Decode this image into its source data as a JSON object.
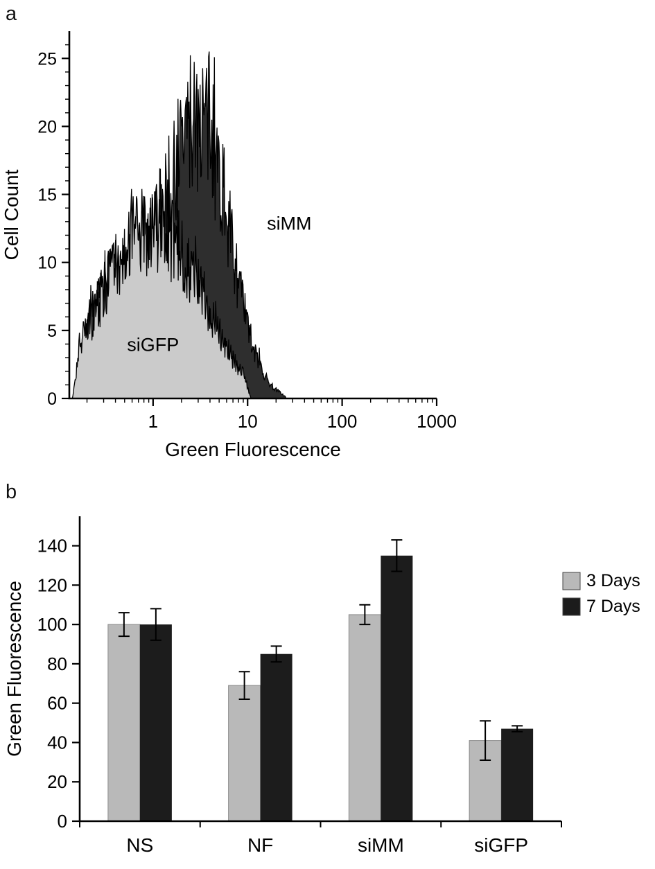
{
  "figure": {
    "panel_a_label": "a",
    "panel_b_label": "b",
    "background": "#ffffff"
  },
  "chart_data": [
    {
      "type": "area",
      "panel": "a",
      "subtype": "flow-cytometry-overlay-histogram",
      "xlabel": "Green Fluorescence",
      "ylabel": "Cell Count",
      "xscale": "log",
      "xlim": [
        0.13,
        1000
      ],
      "ylim": [
        0,
        27
      ],
      "xticks": [
        1,
        10,
        100,
        1000
      ],
      "yticks": [
        0,
        5,
        10,
        15,
        20,
        25
      ],
      "grid": false,
      "noise": {
        "seed": 7,
        "jitter": 0.55,
        "bins": 330,
        "spike_prob": 0.07,
        "spike_mag": 0.35
      },
      "series": [
        {
          "name": "siMM",
          "fill": "#2e2e2e",
          "outline": "#000000",
          "x_range": [
            0.15,
            28
          ],
          "vmax": 25.5,
          "components": [
            {
              "x": 0.55,
              "h": 9.5,
              "s": 0.42
            },
            {
              "x": 3.3,
              "h": 19.0,
              "s": 0.3
            }
          ],
          "peak_x": 3.5,
          "peak_cell_count": 25,
          "annotation": {
            "text": "siMM",
            "x": 16,
            "y": 12.4
          }
        },
        {
          "name": "siGFP",
          "fill": "#cbcbcb",
          "outline": "#000000",
          "x_range": [
            0.14,
            11
          ],
          "vmax": 15.4,
          "components": [
            {
              "x": 0.65,
              "h": 10.5,
              "s": 0.42
            },
            {
              "x": 2.5,
              "h": 5.5,
              "s": 0.35
            }
          ],
          "peak_x": 0.7,
          "peak_cell_count": 15,
          "annotation": {
            "text": "siGFP",
            "x": 0.53,
            "y": 3.5
          }
        }
      ]
    },
    {
      "type": "bar",
      "panel": "b",
      "xlabel": "",
      "ylabel": "Green Fluorescence",
      "categories": [
        "NS",
        "NF",
        "siMM",
        "siGFP"
      ],
      "ylim": [
        0,
        155
      ],
      "yticks": [
        0,
        20,
        40,
        60,
        80,
        100,
        120,
        140
      ],
      "grid": false,
      "legend_position": "right",
      "series": [
        {
          "name": "3 Days",
          "color": "#b9b9b9",
          "values": [
            100,
            69,
            105,
            41
          ],
          "errors": [
            6,
            7,
            5,
            10
          ]
        },
        {
          "name": "7 Days",
          "color": "#1c1c1c",
          "values": [
            100,
            85,
            135,
            47
          ],
          "errors": [
            8,
            4,
            8,
            1.5
          ]
        }
      ]
    }
  ]
}
